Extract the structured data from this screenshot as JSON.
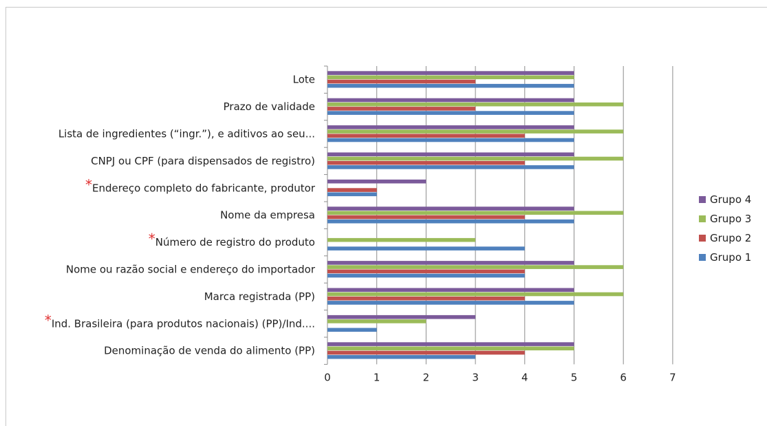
{
  "chart_data": {
    "type": "bar",
    "orientation": "horizontal",
    "categories": [
      "Lote",
      "Prazo de validade",
      "Lista de ingredientes (“ingr.”), e aditivos ao seu...",
      "CNPJ ou CPF (para dispensados de registro)",
      "Endereço completo do fabricante, produtor",
      "Nome da empresa",
      "Número de registro do produto",
      "Nome ou razão social e endereço do importador",
      "Marca registrada (PP)",
      "Ind. Brasileira (para produtos nacionais) (PP)/Ind....",
      "Denominação de venda do alimento (PP)"
    ],
    "asterisk": [
      false,
      false,
      false,
      false,
      true,
      false,
      true,
      false,
      false,
      true,
      false
    ],
    "series": [
      {
        "name": "Grupo 4",
        "color": "#7b5a9a",
        "values": [
          5,
          5,
          5,
          5,
          2,
          5,
          0,
          5,
          5,
          3,
          5
        ]
      },
      {
        "name": "Grupo 3",
        "color": "#9bbb59",
        "values": [
          5,
          6,
          6,
          6,
          0,
          6,
          3,
          6,
          6,
          2,
          5
        ]
      },
      {
        "name": "Grupo 2",
        "color": "#c0504d",
        "values": [
          3,
          3,
          4,
          4,
          1,
          4,
          0,
          4,
          4,
          0,
          4
        ]
      },
      {
        "name": "Grupo 1",
        "color": "#4f81bd",
        "values": [
          5,
          5,
          5,
          5,
          1,
          5,
          4,
          4,
          5,
          1,
          3
        ]
      }
    ],
    "xlim": [
      0,
      7
    ],
    "xticks": [
      "0",
      "1",
      "2",
      "3",
      "4",
      "5",
      "6",
      "7"
    ],
    "grid": "vertical",
    "legend_position": "right",
    "title": "",
    "xlabel": "",
    "ylabel": ""
  },
  "legend_items": [
    {
      "name": "Grupo 4",
      "color": "#7b5a9a"
    },
    {
      "name": "Grupo 3",
      "color": "#9bbb59"
    },
    {
      "name": "Grupo 2",
      "color": "#c0504d"
    },
    {
      "name": "Grupo 1",
      "color": "#4f81bd"
    }
  ],
  "asterisk_symbol": "*"
}
